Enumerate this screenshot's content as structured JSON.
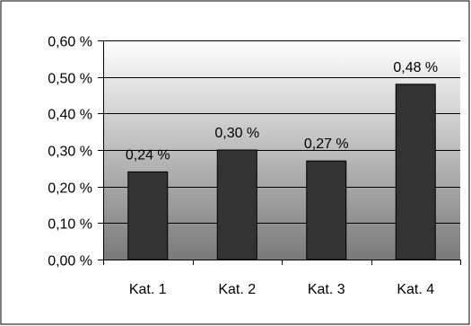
{
  "colors": {
    "bar_fill": "#333333",
    "bar_stroke": "#000000",
    "plot_gradient_top": "#ffffff",
    "plot_gradient_bottom": "#7a7a7a",
    "gridline": "#000000",
    "frame": "#000000"
  },
  "chart_data": {
    "type": "bar",
    "categories": [
      "Kat. 1",
      "Kat. 2",
      "Kat. 3",
      "Kat. 4"
    ],
    "values": [
      0.24,
      0.3,
      0.27,
      0.48
    ],
    "data_labels": [
      "0,24 %",
      "0,30 %",
      "0,27 %",
      "0,48 %"
    ],
    "yticks": [
      0.0,
      0.1,
      0.2,
      0.3,
      0.4,
      0.5,
      0.6
    ],
    "ytick_labels": [
      "0,00 %",
      "0,10 %",
      "0,20 %",
      "0,30 %",
      "0,40 %",
      "0,50 %",
      "0,60 %"
    ],
    "ylim": [
      0,
      0.6
    ],
    "grid": true,
    "legend": false,
    "title": "",
    "xlabel": "",
    "ylabel": ""
  }
}
